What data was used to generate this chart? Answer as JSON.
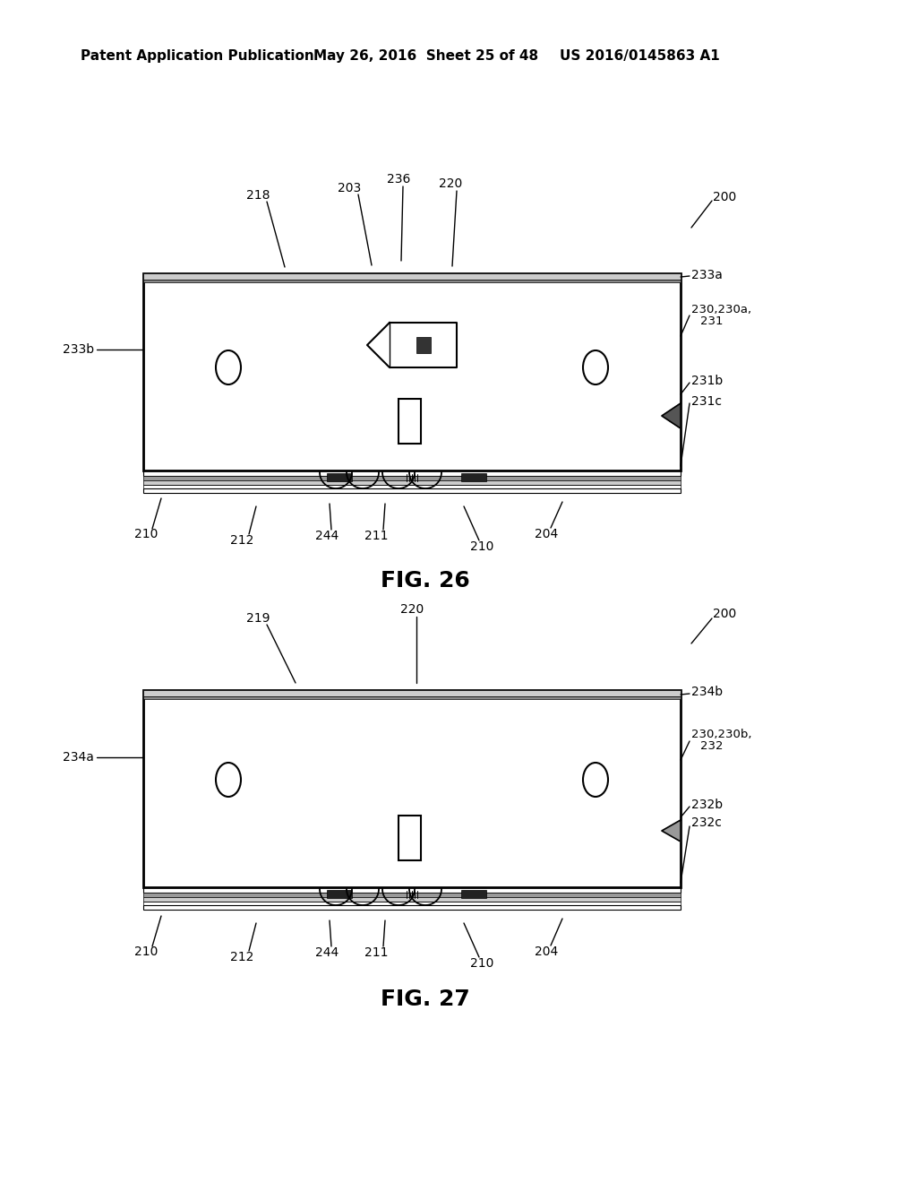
{
  "bg_color": "#ffffff",
  "header_left": "Patent Application Publication",
  "header_mid": "May 26, 2016  Sheet 25 of 48",
  "header_right": "US 2016/0145863 A1",
  "fig26_label": "FIG. 26",
  "fig27_label": "FIG. 27",
  "text_color": "#000000",
  "line_color": "#000000"
}
